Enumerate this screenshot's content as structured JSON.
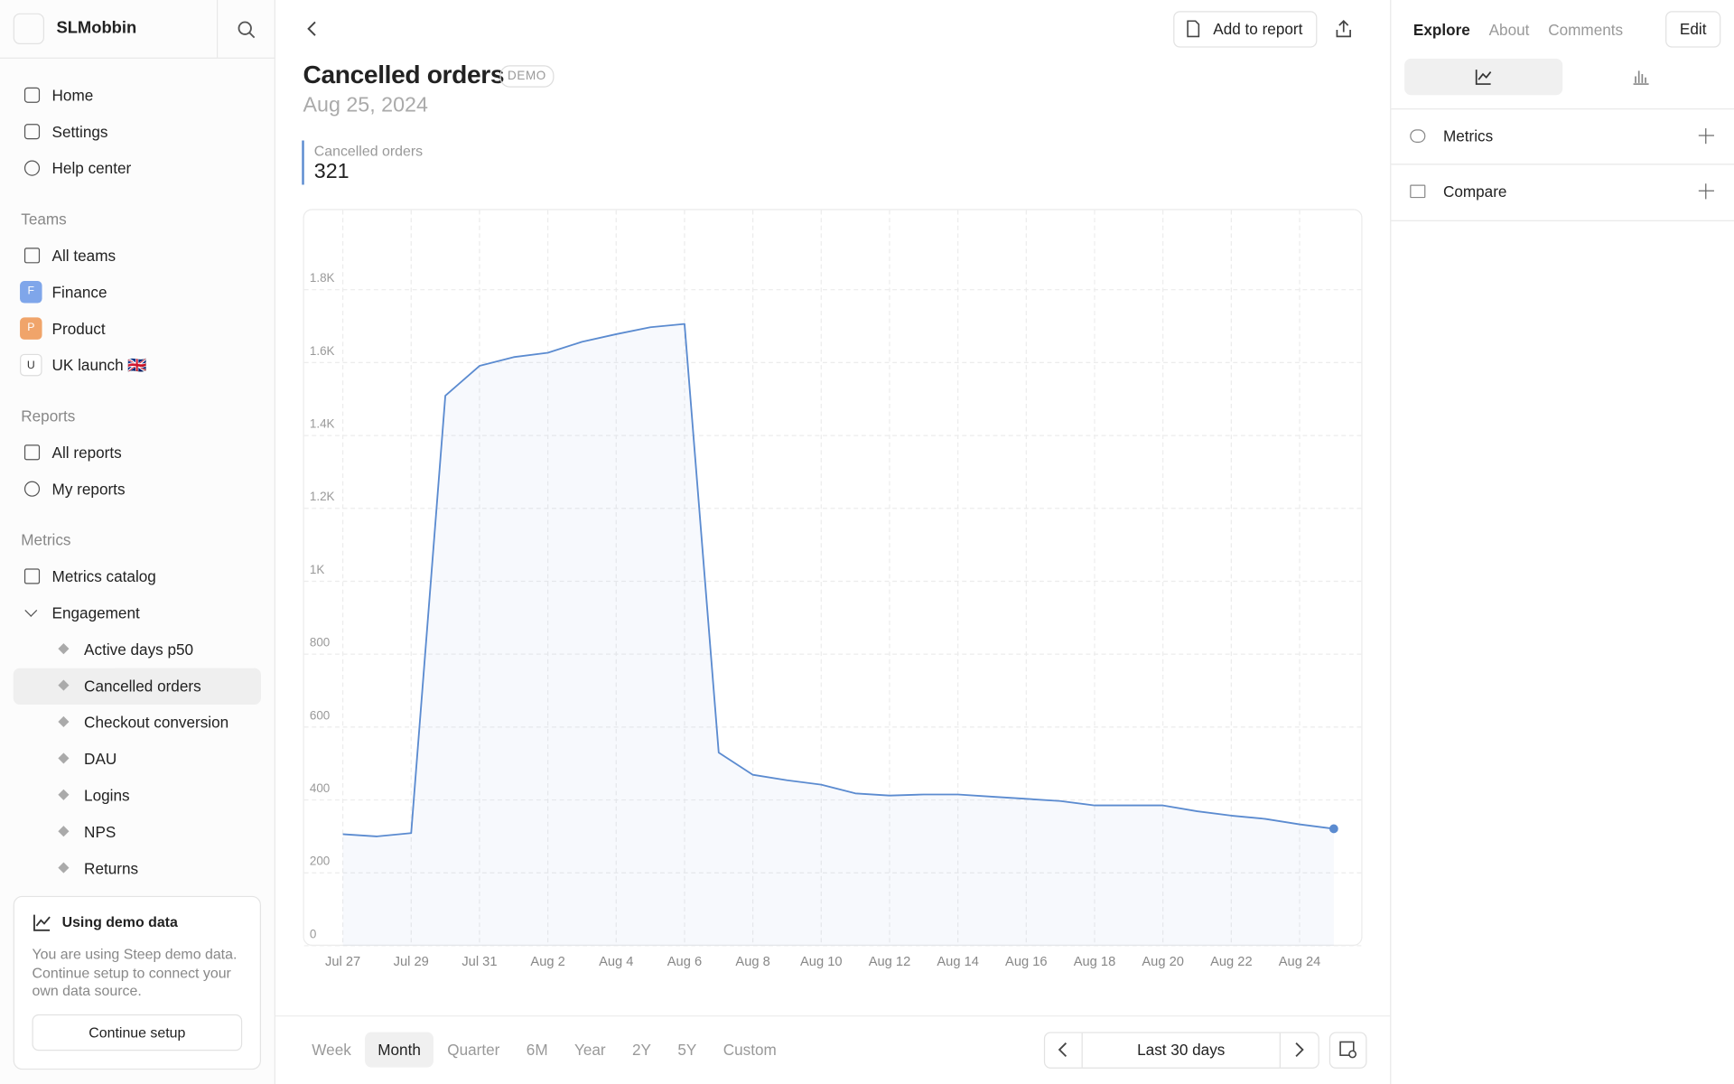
{
  "sidebar": {
    "workspace": "SLMobbin",
    "nav": [
      "Home",
      "Settings",
      "Help center"
    ],
    "teams_heading": "Teams",
    "teams": [
      {
        "label": "All teams"
      },
      {
        "badge": "F",
        "label": "Finance"
      },
      {
        "badge": "P",
        "label": "Product"
      },
      {
        "badge": "U",
        "label": "UK launch 🇬🇧"
      }
    ],
    "reports_heading": "Reports",
    "reports": [
      "All reports",
      "My reports"
    ],
    "metrics_heading": "Metrics",
    "metrics_catalog": "Metrics catalog",
    "group": "Engagement",
    "group_items": [
      "Active days p50",
      "Cancelled orders",
      "Checkout conversion",
      "DAU",
      "Logins",
      "NPS",
      "Returns"
    ],
    "demo_card": {
      "title": "Using demo data",
      "text": "You are using Steep demo data. Continue setup to connect your own data source.",
      "button": "Continue setup"
    }
  },
  "header": {
    "title": "Cancelled orders",
    "badge": "DEMO",
    "date": "Aug 25, 2024",
    "add_to_report": "Add to report"
  },
  "summary": {
    "label": "Cancelled orders",
    "value": "321"
  },
  "right_panel": {
    "tabs": [
      "Explore",
      "About",
      "Comments"
    ],
    "edit": "Edit",
    "sections": [
      "Metrics",
      "Compare"
    ]
  },
  "footer": {
    "periods": [
      "Week",
      "Month",
      "Quarter",
      "6M",
      "Year",
      "2Y",
      "5Y",
      "Custom"
    ],
    "range": "Last 30 days"
  },
  "chart_data": {
    "type": "line",
    "color": "#5b8bd0",
    "categories": [
      "Jul 27",
      null,
      "Jul 29",
      null,
      "Jul 31",
      null,
      "Aug 2",
      null,
      "Aug 4",
      null,
      "Aug 6",
      null,
      "Aug 8",
      null,
      "Aug 10",
      null,
      "Aug 12",
      null,
      "Aug 14",
      null,
      "Aug 16",
      null,
      "Aug 18",
      null,
      "Aug 20",
      null,
      "Aug 22",
      null,
      "Aug 24",
      null
    ],
    "values": [
      306,
      300,
      309,
      1509,
      1591,
      1615,
      1627,
      1657,
      1678,
      1697,
      1706,
      530,
      469,
      454,
      442,
      418,
      412,
      415,
      415,
      409,
      403,
      397,
      385,
      385,
      385,
      369,
      357,
      348,
      333,
      321
    ],
    "ylim": [
      0,
      2000
    ],
    "yticks": [
      0,
      200,
      400,
      600,
      800,
      {
        "value": 1000,
        "label": "1K"
      },
      {
        "value": 1200,
        "label": "1.2K"
      },
      {
        "value": 1400,
        "label": "1.4K"
      },
      {
        "value": 1600,
        "label": "1.6K"
      },
      {
        "value": 1800,
        "label": "1.8K"
      }
    ],
    "grid": true
  }
}
